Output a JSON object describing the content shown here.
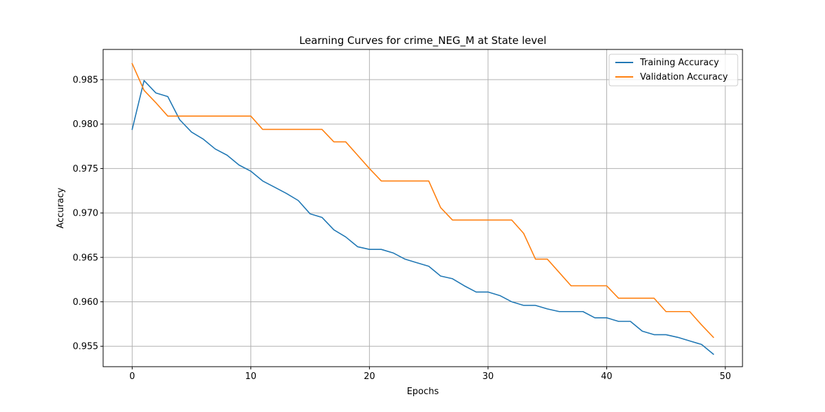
{
  "chart_data": {
    "type": "line",
    "title": "Learning Curves for crime_NEG_M at State level",
    "xlabel": "Epochs",
    "ylabel": "Accuracy",
    "xlim": [
      -2.45,
      51.45
    ],
    "ylim": [
      0.9527,
      0.9884
    ],
    "xticks": [
      0,
      10,
      20,
      30,
      40,
      50
    ],
    "yticks": [
      0.955,
      0.96,
      0.965,
      0.97,
      0.975,
      0.98,
      0.985
    ],
    "xtick_labels": [
      "0",
      "10",
      "20",
      "30",
      "40",
      "50"
    ],
    "ytick_labels": [
      "0.955",
      "0.960",
      "0.965",
      "0.970",
      "0.975",
      "0.980",
      "0.985"
    ],
    "grid": true,
    "legend_position": "top-right",
    "x": [
      0,
      1,
      2,
      3,
      4,
      5,
      6,
      7,
      8,
      9,
      10,
      11,
      12,
      13,
      14,
      15,
      16,
      17,
      18,
      19,
      20,
      21,
      22,
      23,
      24,
      25,
      26,
      27,
      28,
      29,
      30,
      31,
      32,
      33,
      34,
      35,
      36,
      37,
      38,
      39,
      40,
      41,
      42,
      43,
      44,
      45,
      46,
      47,
      48,
      49
    ],
    "series": [
      {
        "name": "Training Accuracy",
        "color": "#1f77b4",
        "values": [
          0.9794,
          0.9849,
          0.9835,
          0.9831,
          0.9805,
          0.9791,
          0.9783,
          0.9772,
          0.9765,
          0.9754,
          0.9747,
          0.9736,
          0.9729,
          0.9722,
          0.9714,
          0.9699,
          0.9695,
          0.9681,
          0.9673,
          0.9662,
          0.9659,
          0.9659,
          0.9655,
          0.9648,
          0.9644,
          0.964,
          0.9629,
          0.9626,
          0.9618,
          0.9611,
          0.9611,
          0.9607,
          0.96,
          0.9596,
          0.9596,
          0.9592,
          0.9589,
          0.9589,
          0.9589,
          0.9582,
          0.9582,
          0.9578,
          0.9578,
          0.9567,
          0.9563,
          0.9563,
          0.956,
          0.9556,
          0.9552,
          0.9541
        ]
      },
      {
        "name": "Validation Accuracy",
        "color": "#ff7f0e",
        "values": [
          0.9868,
          0.9838,
          0.9824,
          0.9809,
          0.9809,
          0.9809,
          0.9809,
          0.9809,
          0.9809,
          0.9809,
          0.9809,
          0.9794,
          0.9794,
          0.9794,
          0.9794,
          0.9794,
          0.9794,
          0.978,
          0.978,
          0.9765,
          0.975,
          0.9736,
          0.9736,
          0.9736,
          0.9736,
          0.9736,
          0.9706,
          0.9692,
          0.9692,
          0.9692,
          0.9692,
          0.9692,
          0.9692,
          0.9677,
          0.9648,
          0.9648,
          0.9633,
          0.9618,
          0.9618,
          0.9618,
          0.9618,
          0.9604,
          0.9604,
          0.9604,
          0.9604,
          0.9589,
          0.9589,
          0.9589,
          0.9574,
          0.956
        ]
      }
    ]
  }
}
